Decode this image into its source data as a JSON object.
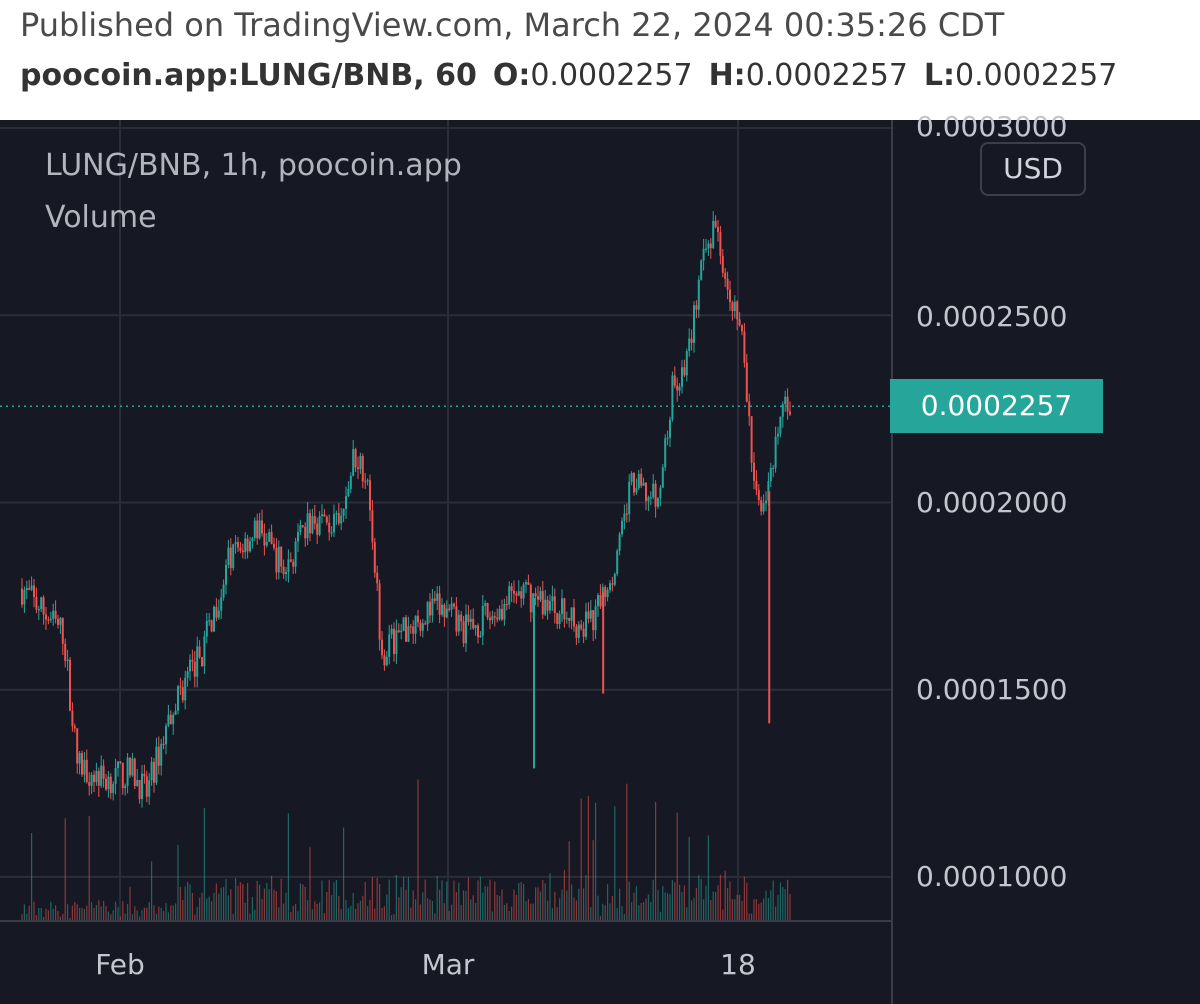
{
  "header": {
    "published": "Published on TradingView.com, March 22, 2024 00:35:26 CDT",
    "symbol": "poocoin.app:LUNG/BNB, 60",
    "o_label": "O:",
    "o_value": "0.0002257",
    "h_label": "H:",
    "h_value": "0.0002257",
    "l_label": "L:",
    "l_value": "0.0002257"
  },
  "legend": {
    "title": "LUNG/BNB, 1h, poocoin.app",
    "volume": "Volume"
  },
  "currency_badge": "USD",
  "last_price_label": "0.0002257",
  "colors": {
    "background": "#161823",
    "up": "#26a69a",
    "down": "#ef5350",
    "grid": "#2b2e39",
    "last_price": "#26a69a"
  },
  "chart_data": {
    "type": "candlestick",
    "ylabel": "",
    "ylim": [
      8.85e-05,
      0.0003
    ],
    "yticks": [
      "0.0003000",
      "0.0002500",
      "0.0002000",
      "0.0001500",
      "0.0001000"
    ],
    "ytick_values": [
      0.0003,
      0.00025,
      0.0002,
      0.00015,
      0.0001
    ],
    "xticks": [
      "Feb",
      "Mar",
      "18"
    ],
    "grid": true,
    "last_price": 0.0002257,
    "trend_points": [
      {
        "x": "2024-01-27",
        "y": 0.000177
      },
      {
        "x": "2024-01-30",
        "y": 0.000165
      },
      {
        "x": "2024-01-31",
        "y": 0.00013
      },
      {
        "x": "2024-02-02",
        "y": 0.000126
      },
      {
        "x": "2024-02-04",
        "y": 0.000128
      },
      {
        "x": "2024-02-05",
        "y": 0.000122
      },
      {
        "x": "2024-02-07",
        "y": 0.000147
      },
      {
        "x": "2024-02-09",
        "y": 0.00016
      },
      {
        "x": "2024-02-11",
        "y": 0.000185
      },
      {
        "x": "2024-02-13",
        "y": 0.000193
      },
      {
        "x": "2024-02-15",
        "y": 0.000182
      },
      {
        "x": "2024-02-17",
        "y": 0.000196
      },
      {
        "x": "2024-02-19",
        "y": 0.000193
      },
      {
        "x": "2024-02-20",
        "y": 0.000213
      },
      {
        "x": "2024-02-21",
        "y": 0.000208
      },
      {
        "x": "2024-02-22",
        "y": 0.00016
      },
      {
        "x": "2024-02-24",
        "y": 0.000168
      },
      {
        "x": "2024-02-26",
        "y": 0.000172
      },
      {
        "x": "2024-02-28",
        "y": 0.000166
      },
      {
        "x": "2024-03-01",
        "y": 0.00017
      },
      {
        "x": "2024-03-03",
        "y": 0.000176
      },
      {
        "x": "2024-03-05",
        "y": 0.000173
      },
      {
        "x": "2024-03-07",
        "y": 0.000168
      },
      {
        "x": "2024-03-08",
        "y": 0.000167
      },
      {
        "x": "2024-03-10",
        "y": 0.000185
      },
      {
        "x": "2024-03-11",
        "y": 0.000205
      },
      {
        "x": "2024-03-13",
        "y": 0.0002
      },
      {
        "x": "2024-03-14",
        "y": 0.00023
      },
      {
        "x": "2024-03-15",
        "y": 0.000237
      },
      {
        "x": "2024-03-16",
        "y": 0.00026
      },
      {
        "x": "2024-03-17",
        "y": 0.000275
      },
      {
        "x": "2024-03-18",
        "y": 0.00026
      },
      {
        "x": "2024-03-19",
        "y": 0.000245
      },
      {
        "x": "2024-03-20",
        "y": 0.0002
      },
      {
        "x": "2024-03-21",
        "y": 0.000203
      },
      {
        "x": "2024-03-22",
        "y": 0.000226
      }
    ],
    "spikes": [
      {
        "x": "2024-03-04",
        "low": 0.000129
      },
      {
        "x": "2024-03-09",
        "low": 0.000149
      },
      {
        "x": "2024-03-21",
        "low": 0.000141
      }
    ]
  }
}
